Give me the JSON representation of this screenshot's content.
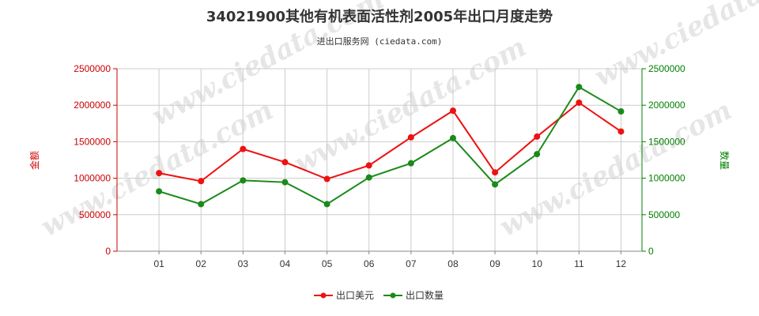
{
  "chart_data": {
    "type": "line",
    "title": "34021900其他有机表面活性剂2005年出口月度走势",
    "subtitle": "进出口服务网 (ciedata.com)",
    "watermark": "www.ciedata.com",
    "categories": [
      "01",
      "02",
      "03",
      "04",
      "05",
      "06",
      "07",
      "08",
      "09",
      "10",
      "11",
      "12"
    ],
    "y_left": {
      "label": "金额",
      "ylim": [
        0,
        2500000
      ],
      "ticks": [
        0,
        500000,
        1000000,
        1500000,
        2000000,
        2500000
      ],
      "color": "#cc0000"
    },
    "y_right": {
      "label": "数量",
      "ylim": [
        0,
        2500000
      ],
      "ticks": [
        0,
        500000,
        1000000,
        1500000,
        2000000,
        2500000
      ],
      "color": "#008000"
    },
    "grid": true,
    "legend_position": "bottom",
    "series": [
      {
        "name": "出口美元",
        "axis": "left",
        "color": "#ee1111",
        "values": [
          1070000,
          960000,
          1400000,
          1220000,
          990000,
          1175000,
          1560000,
          1925000,
          1080000,
          1570000,
          2035000,
          1640000
        ]
      },
      {
        "name": "出口数量",
        "axis": "right",
        "color": "#1a8a1a",
        "values": [
          820000,
          645000,
          970000,
          945000,
          645000,
          1010000,
          1205000,
          1550000,
          915000,
          1330000,
          2250000,
          1915000
        ]
      }
    ]
  }
}
